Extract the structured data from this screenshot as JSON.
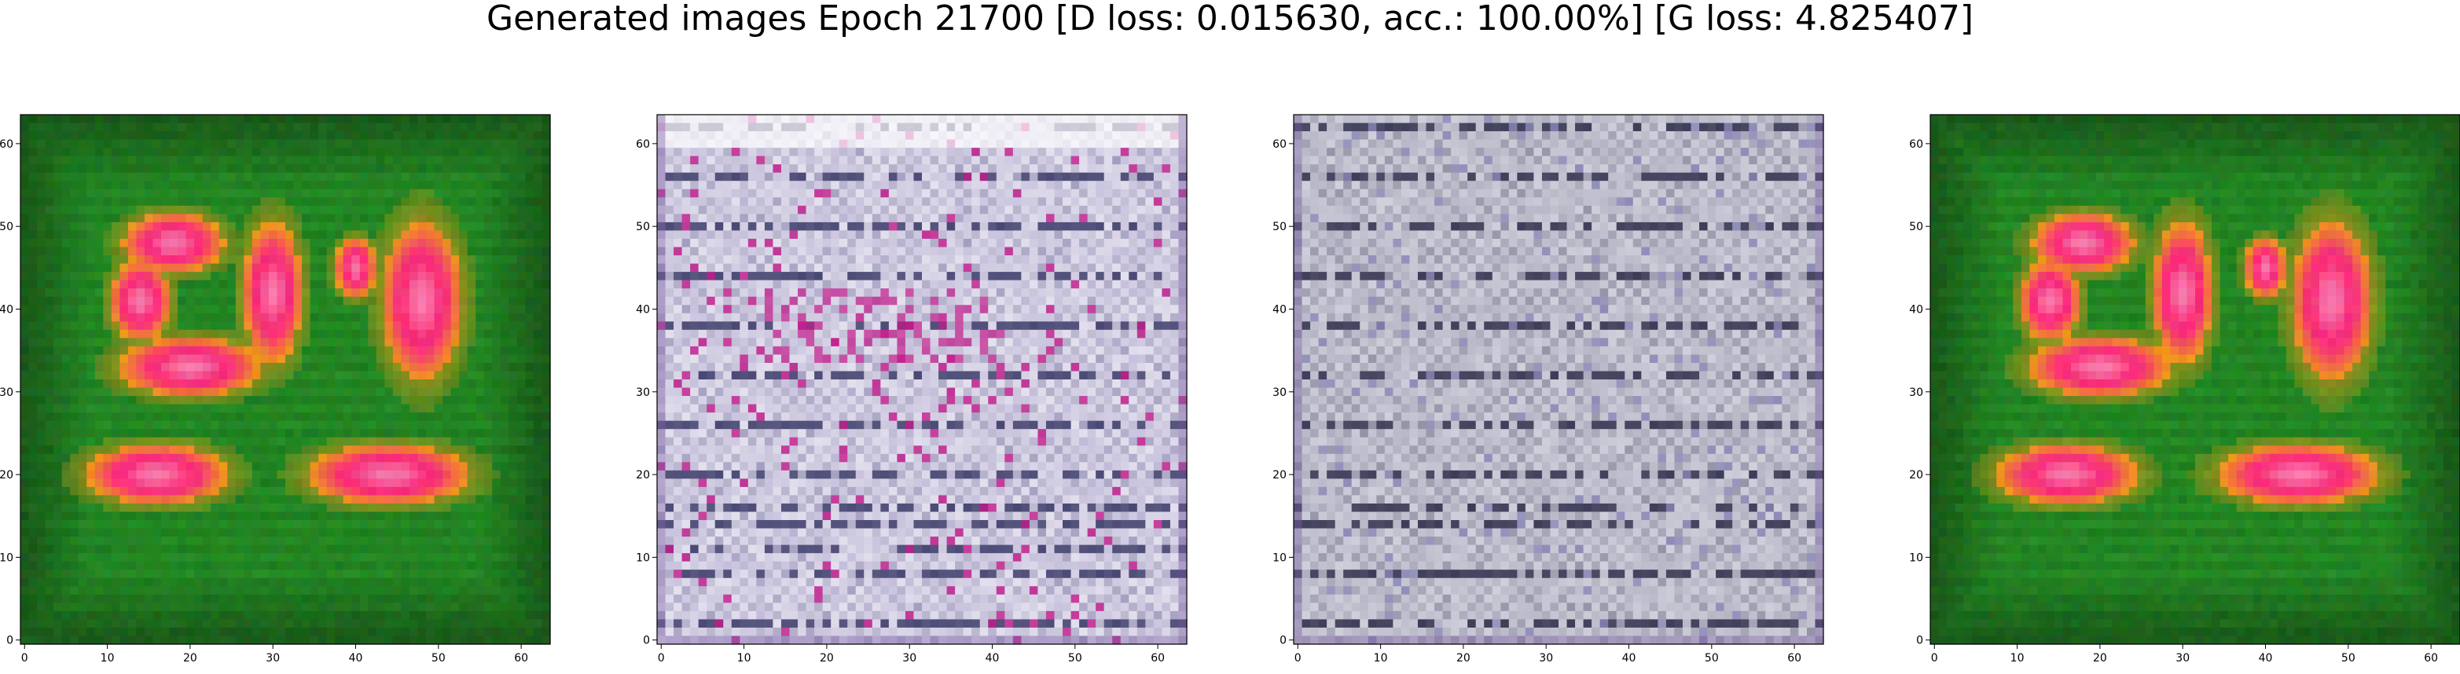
{
  "title": "Generated images Epoch 21700 [D loss: 0.015630, acc.: 100.00%] [G loss: 4.825407]",
  "chart_data": [
    {
      "type": "heatmap",
      "content": "generated image 1: green background with magenta/red blobs",
      "palette": {
        "background": "#1f8a1f",
        "blob": "#ff2a7a",
        "blob_core": "#ffb0d0",
        "edge": "#f39c12"
      },
      "xlim": [
        -0.5,
        63.5
      ],
      "ylim": [
        63.5,
        -0.5
      ],
      "xticks": [
        0,
        10,
        20,
        30,
        40,
        50,
        60
      ],
      "yticks": [
        0,
        10,
        20,
        30,
        40,
        50,
        60
      ],
      "grid": false
    },
    {
      "type": "heatmap",
      "content": "generated image 2: pale lavender/blue noisy stripes",
      "palette": {
        "background": "#c9c3de",
        "stripe": "#2a2a5a",
        "accent": "#c21a8a",
        "highlight": "#ffffff"
      },
      "xlim": [
        -0.5,
        63.5
      ],
      "ylim": [
        63.5,
        -0.5
      ],
      "xticks": [
        0,
        10,
        20,
        30,
        40,
        50,
        60
      ],
      "yticks": [
        0,
        10,
        20,
        30,
        40,
        50,
        60
      ],
      "grid": false
    },
    {
      "type": "heatmap",
      "content": "generated image 3: grey-lavender noisy texture",
      "palette": {
        "background": "#b8b8c8",
        "stripe": "#1e1e3c",
        "accent": "#8a88b8",
        "highlight": "#e8e8f0"
      },
      "xlim": [
        -0.5,
        63.5
      ],
      "ylim": [
        63.5,
        -0.5
      ],
      "xticks": [
        0,
        10,
        20,
        30,
        40,
        50,
        60
      ],
      "yticks": [
        0,
        10,
        20,
        30,
        40,
        50,
        60
      ],
      "grid": false
    },
    {
      "type": "heatmap",
      "content": "generated image 4: green background with magenta/red blobs",
      "palette": {
        "background": "#1f8a1f",
        "blob": "#ff2a7a",
        "blob_core": "#ffb0d0",
        "edge": "#f39c12"
      },
      "xlim": [
        -0.5,
        63.5
      ],
      "ylim": [
        63.5,
        -0.5
      ],
      "xticks": [
        0,
        10,
        20,
        30,
        40,
        50,
        60
      ],
      "yticks": [
        0,
        10,
        20,
        30,
        40,
        50,
        60
      ],
      "grid": false
    }
  ]
}
